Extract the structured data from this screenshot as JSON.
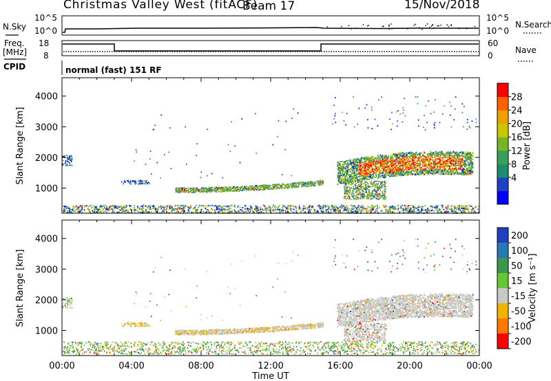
{
  "header": {
    "station": "Christmas Valley West (fitACF)",
    "beam": "Beam 17",
    "date": "15/Nov/2018"
  },
  "top_panels": {
    "nsky_label": "N.Sky",
    "nsky_ticks": [
      "10^5",
      "10^0"
    ],
    "nsearch_label": "N.Search",
    "nsearch_ticks": [
      "10^5",
      "10^0"
    ],
    "freq_label_1": "Freq.",
    "freq_label_2": "[MHz]",
    "freq_ticks": [
      "18",
      "8"
    ],
    "nave_label": "Nave",
    "nave_ticks": [
      "60",
      "0"
    ],
    "cpid_label": "CPID",
    "cpid_text": "normal (fast) 151 RF"
  },
  "chart_data": [
    {
      "type": "heatmap",
      "name": "power",
      "ylabel": "Slant Range [km]",
      "yticks": [
        "4000",
        "3000",
        "2000",
        "1000"
      ],
      "ylim": [
        180,
        4600
      ],
      "colorbar_label": "Power [dB]",
      "colorbar_ticks": [
        "28",
        "24",
        "20",
        "16",
        "12",
        "8",
        "4"
      ],
      "colors": [
        "#0000ff",
        "#2040c8",
        "#1e8c6e",
        "#3aa058",
        "#78b428",
        "#c8c800",
        "#f0a000",
        "#ff6000",
        "#ff0000"
      ]
    },
    {
      "type": "heatmap",
      "name": "velocity",
      "ylabel": "Slant Range [km]",
      "yticks": [
        "4000",
        "3000",
        "2000",
        "1000"
      ],
      "ylim": [
        180,
        4600
      ],
      "colorbar_label": "Velocity [m s⁻¹]",
      "colorbar_ticks": [
        "200",
        "100",
        "50",
        "15",
        "-15",
        "-50",
        "-100",
        "-200"
      ],
      "colors": [
        "#2040c0",
        "#2878b4",
        "#3c9650",
        "#64c832",
        "#c8c8c8",
        "#f0b400",
        "#ff7800",
        "#ff0000"
      ]
    }
  ],
  "xaxis": {
    "label": "Time UT",
    "ticks": [
      "00:00",
      "04:00",
      "08:00",
      "12:00",
      "16:00",
      "20:00",
      "00:00"
    ]
  }
}
